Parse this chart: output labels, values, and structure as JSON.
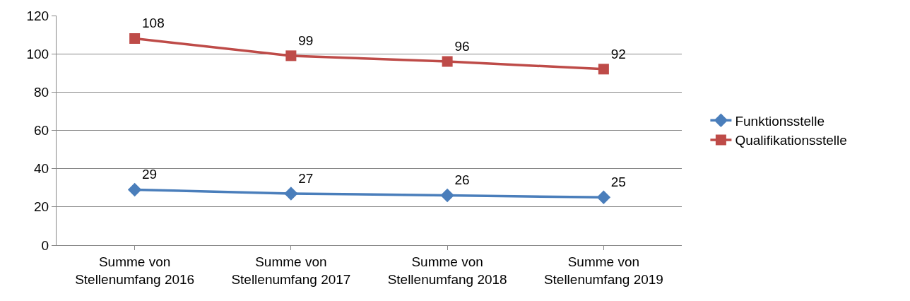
{
  "chart_data": {
    "type": "line",
    "categories": [
      "Summe von\nStellenumfang 2016",
      "Summe von\nStellenumfang 2017",
      "Summe von\nStellenumfang 2018",
      "Summe von\nStellenumfang 2019"
    ],
    "series": [
      {
        "name": "Funktionsstelle",
        "color": "#4a7ebb",
        "marker": "diamond",
        "values": [
          29,
          27,
          26,
          25
        ]
      },
      {
        "name": "Qualifikationsstelle",
        "color": "#be4b48",
        "marker": "square",
        "values": [
          108,
          99,
          96,
          92
        ]
      }
    ],
    "ylim": [
      0,
      120
    ],
    "yticks": [
      0,
      20,
      40,
      60,
      80,
      100,
      120
    ],
    "grid": "y",
    "legend": "right",
    "data_labels": true,
    "line_style": "solid"
  }
}
